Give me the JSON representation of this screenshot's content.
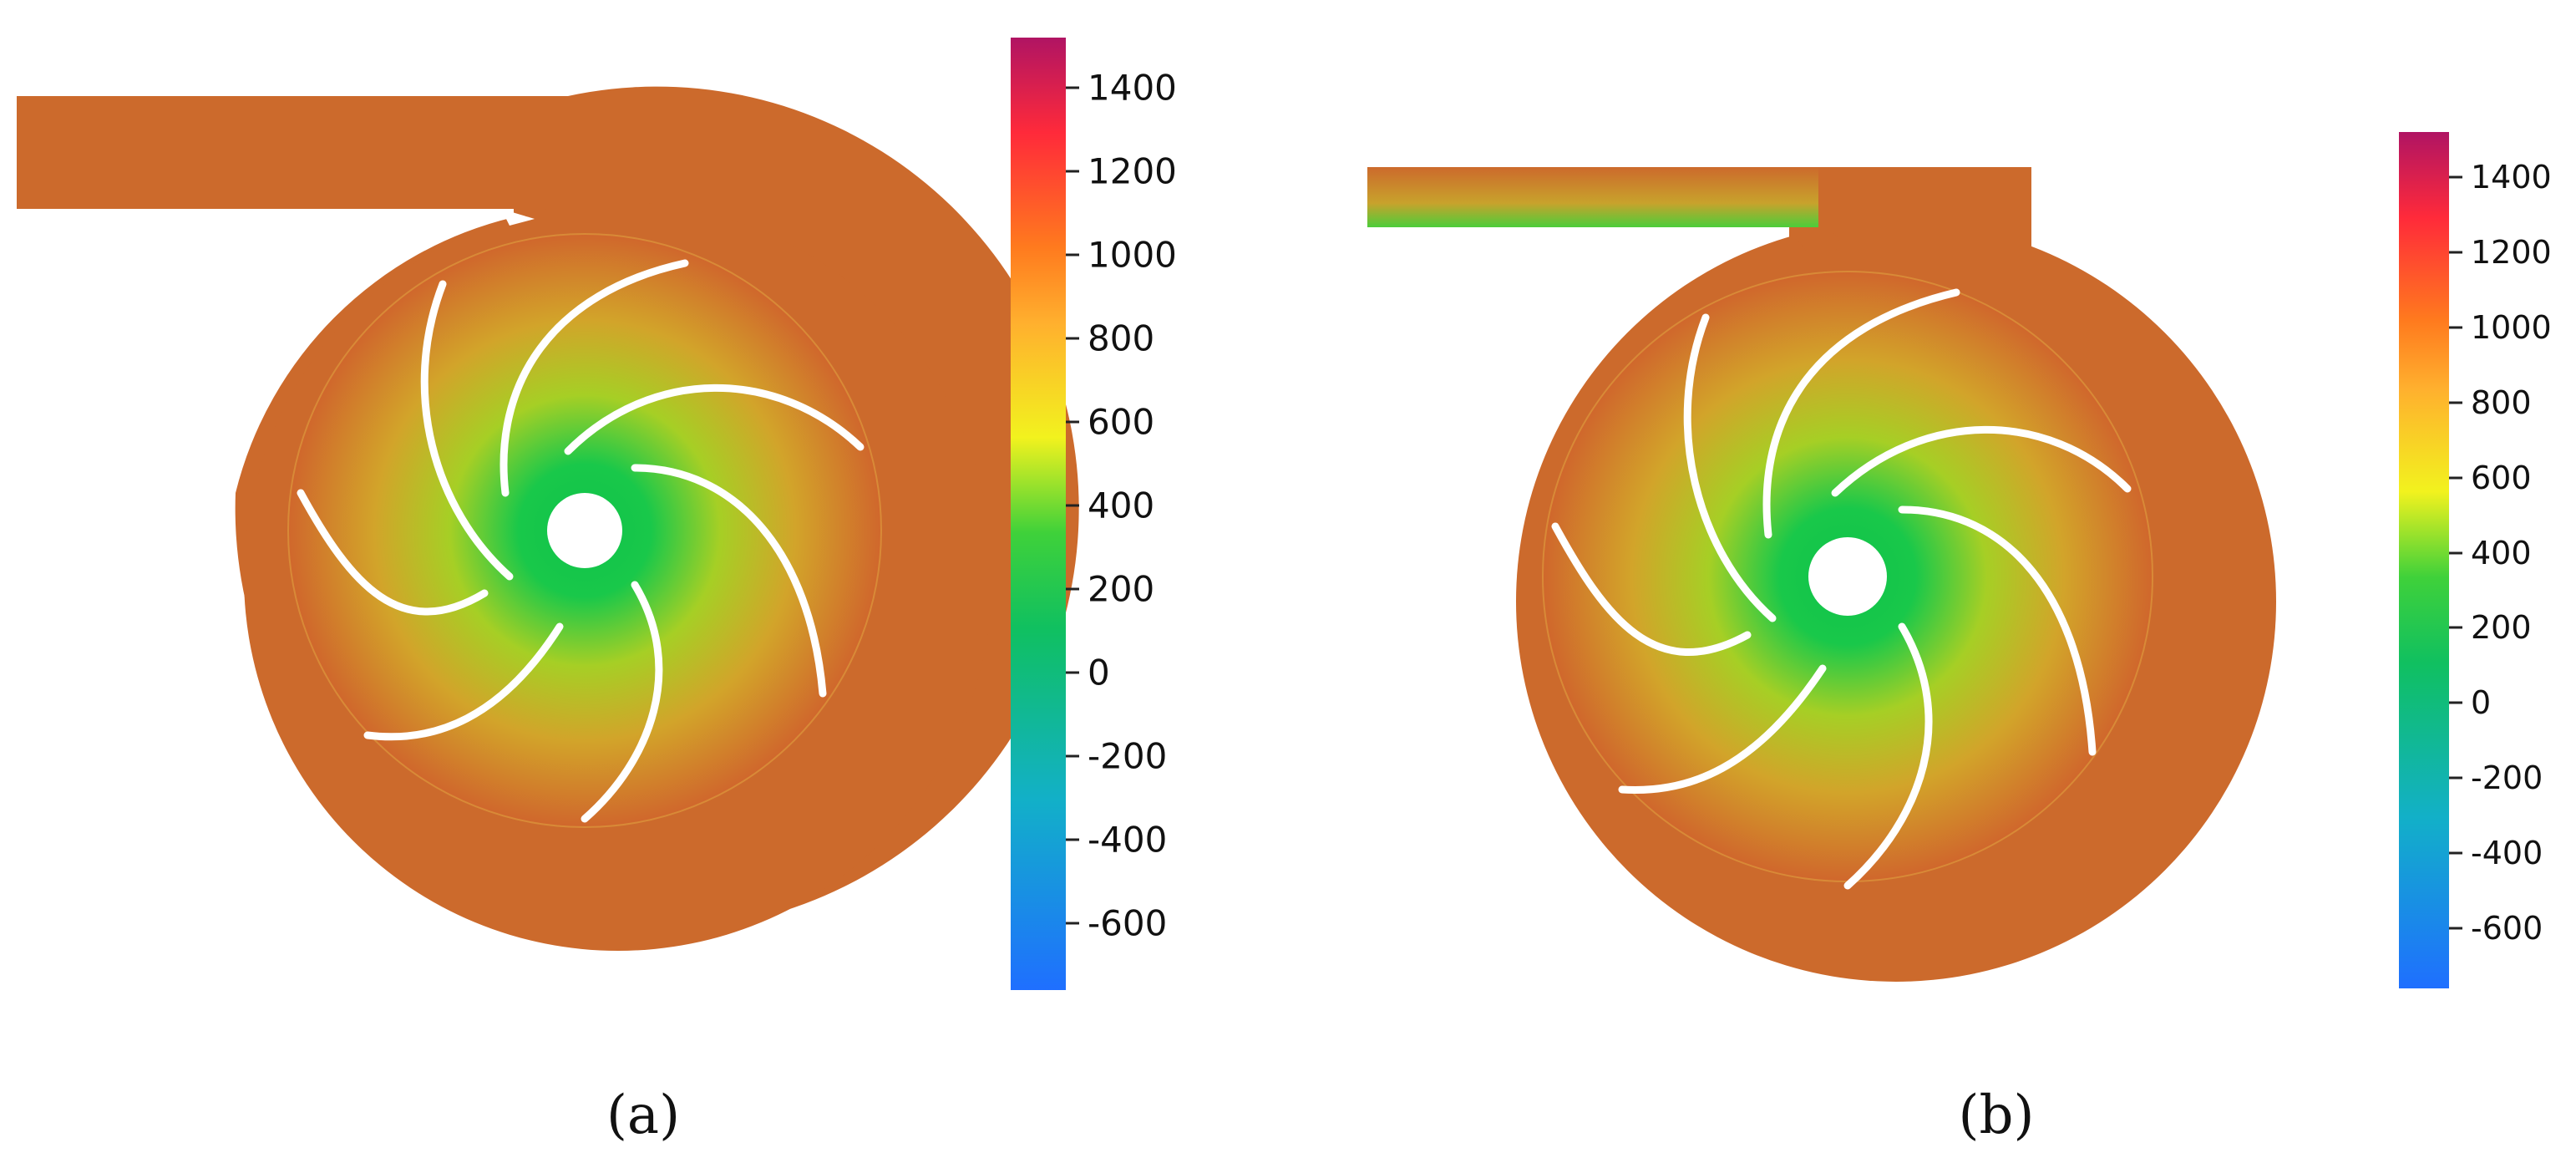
{
  "panels": [
    {
      "caption": "(a)",
      "colorbar": {
        "ticks": [
          "1400",
          "1200",
          "1000",
          "800",
          "600",
          "400",
          "200",
          "0",
          "-200",
          "-400",
          "-600"
        ],
        "range": [
          -760,
          1520
        ]
      }
    },
    {
      "caption": "(b)",
      "colorbar": {
        "ticks": [
          "1400",
          "1200",
          "1000",
          "800",
          "600",
          "400",
          "200",
          "0",
          "-200",
          "-400",
          "-600"
        ],
        "range": [
          -760,
          1520
        ]
      }
    }
  ],
  "colors": {
    "volute": "#cc6a2c",
    "core_green": "#12c24c",
    "mid_yellow": "#c8d21c",
    "blade": "#ffffff"
  }
}
